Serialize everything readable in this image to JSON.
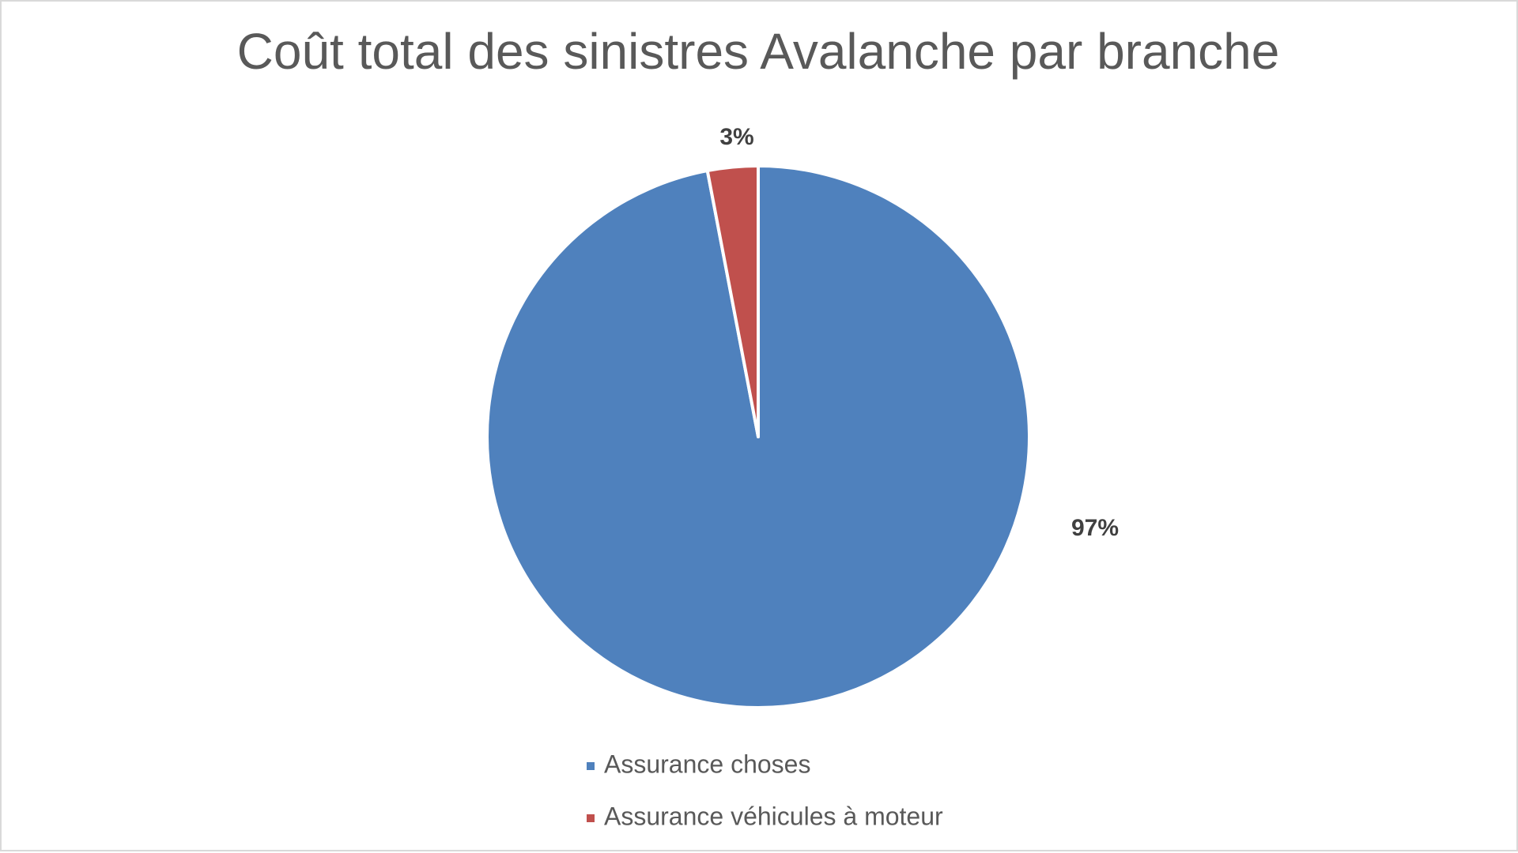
{
  "chart_data": {
    "type": "pie",
    "title": "Coût total des sinistres Avalanche par branche",
    "categories": [
      "Assurance choses",
      "Assurance véhicules à moteur"
    ],
    "values": [
      97,
      3
    ],
    "value_labels": [
      "97%",
      "3%"
    ],
    "colors": [
      "#4f81bd",
      "#c0504d"
    ],
    "legend": "bottom"
  }
}
